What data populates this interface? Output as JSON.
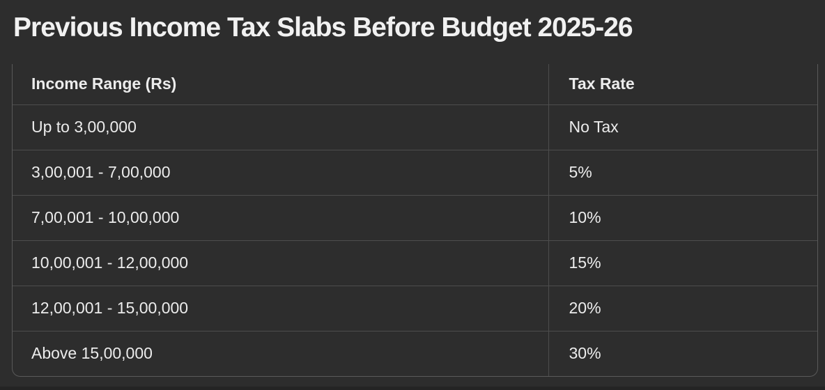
{
  "title": "Previous Income Tax Slabs Before Budget 2025-26",
  "table": {
    "columns": [
      "Income Range (Rs)",
      "Tax Rate"
    ],
    "rows": [
      {
        "income_range": "Up to 3,00,000",
        "tax_rate": "No Tax"
      },
      {
        "income_range": "3,00,001 - 7,00,000",
        "tax_rate": "5%"
      },
      {
        "income_range": "7,00,001 - 10,00,000",
        "tax_rate": "10%"
      },
      {
        "income_range": "10,00,001 - 12,00,000",
        "tax_rate": "15%"
      },
      {
        "income_range": "12,00,001 - 15,00,000",
        "tax_rate": "20%"
      },
      {
        "income_range": "Above 15,00,000",
        "tax_rate": "30%"
      }
    ]
  },
  "colors": {
    "background": "#2D2D2D",
    "text": "#ECECEC",
    "title_text": "#F1F1F1",
    "outer_border": "#5A5A5A",
    "inner_border": "#4D4D4D",
    "bottom_edge": "#242424"
  }
}
